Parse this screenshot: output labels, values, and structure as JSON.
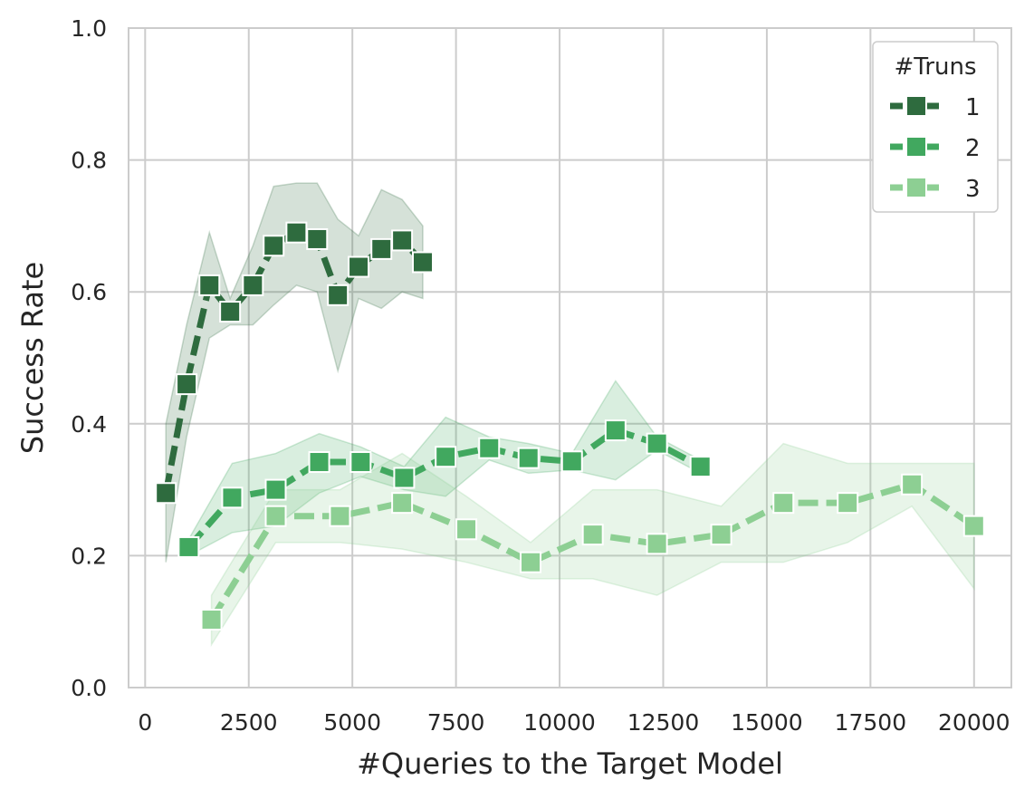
{
  "chart_data": {
    "type": "line",
    "title": "",
    "xlabel": "#Queries to the Target Model",
    "ylabel": "Success Rate",
    "xlim": [
      -400,
      20900
    ],
    "ylim": [
      0,
      1.0
    ],
    "xticks": [
      0,
      2500,
      5000,
      7500,
      10000,
      12500,
      15000,
      17500,
      20000
    ],
    "yticks": [
      0.0,
      0.2,
      0.4,
      0.6,
      0.8,
      1.0
    ],
    "xtick_labels": [
      "0",
      "2500",
      "5000",
      "7500",
      "10000",
      "12500",
      "15000",
      "17500",
      "20000"
    ],
    "ytick_labels": [
      "0.0",
      "0.2",
      "0.4",
      "0.6",
      "0.8",
      "1.0"
    ],
    "grid": true,
    "legend": {
      "title": "#Truns",
      "position": "top-right"
    },
    "series": [
      {
        "name": "1",
        "color": "#2e6b3e",
        "points": [
          {
            "x": 500,
            "y": 0.295,
            "lo": 0.19,
            "hi": 0.4
          },
          {
            "x": 1000,
            "y": 0.46,
            "lo": 0.38,
            "hi": 0.55
          },
          {
            "x": 1550,
            "y": 0.61,
            "lo": 0.53,
            "hi": 0.69
          },
          {
            "x": 2050,
            "y": 0.57,
            "lo": 0.55,
            "hi": 0.59
          },
          {
            "x": 2600,
            "y": 0.61,
            "lo": 0.55,
            "hi": 0.67
          },
          {
            "x": 3100,
            "y": 0.67,
            "lo": 0.58,
            "hi": 0.76
          },
          {
            "x": 3650,
            "y": 0.69,
            "lo": 0.61,
            "hi": 0.765
          },
          {
            "x": 4150,
            "y": 0.68,
            "lo": 0.6,
            "hi": 0.765
          },
          {
            "x": 4650,
            "y": 0.595,
            "lo": 0.48,
            "hi": 0.71
          },
          {
            "x": 5150,
            "y": 0.638,
            "lo": 0.59,
            "hi": 0.685
          },
          {
            "x": 5700,
            "y": 0.665,
            "lo": 0.575,
            "hi": 0.755
          },
          {
            "x": 6200,
            "y": 0.678,
            "lo": 0.6,
            "hi": 0.74
          },
          {
            "x": 6700,
            "y": 0.645,
            "lo": 0.59,
            "hi": 0.7
          }
        ]
      },
      {
        "name": "2",
        "color": "#41a85f",
        "points": [
          {
            "x": 1050,
            "y": 0.213,
            "lo": 0.2,
            "hi": 0.225
          },
          {
            "x": 2100,
            "y": 0.288,
            "lo": 0.235,
            "hi": 0.34
          },
          {
            "x": 3150,
            "y": 0.3,
            "lo": 0.245,
            "hi": 0.355
          },
          {
            "x": 4200,
            "y": 0.342,
            "lo": 0.295,
            "hi": 0.385
          },
          {
            "x": 5200,
            "y": 0.342,
            "lo": 0.32,
            "hi": 0.365
          },
          {
            "x": 6250,
            "y": 0.318,
            "lo": 0.3,
            "hi": 0.335
          },
          {
            "x": 7250,
            "y": 0.35,
            "lo": 0.29,
            "hi": 0.41
          },
          {
            "x": 8300,
            "y": 0.363,
            "lo": 0.345,
            "hi": 0.38
          },
          {
            "x": 9250,
            "y": 0.348,
            "lo": 0.325,
            "hi": 0.37
          },
          {
            "x": 10300,
            "y": 0.343,
            "lo": 0.33,
            "hi": 0.355
          },
          {
            "x": 11350,
            "y": 0.39,
            "lo": 0.315,
            "hi": 0.465
          },
          {
            "x": 12350,
            "y": 0.37,
            "lo": 0.36,
            "hi": 0.38
          },
          {
            "x": 13400,
            "y": 0.335,
            "lo": 0.325,
            "hi": 0.345
          }
        ]
      },
      {
        "name": "3",
        "color": "#8dcf93",
        "points": [
          {
            "x": 1600,
            "y": 0.103,
            "lo": 0.065,
            "hi": 0.14
          },
          {
            "x": 3150,
            "y": 0.26,
            "lo": 0.22,
            "hi": 0.3
          },
          {
            "x": 4700,
            "y": 0.26,
            "lo": 0.22,
            "hi": 0.3
          },
          {
            "x": 6200,
            "y": 0.28,
            "lo": 0.21,
            "hi": 0.355
          },
          {
            "x": 7750,
            "y": 0.24,
            "lo": 0.19,
            "hi": 0.29
          },
          {
            "x": 9300,
            "y": 0.19,
            "lo": 0.165,
            "hi": 0.22
          },
          {
            "x": 10800,
            "y": 0.232,
            "lo": 0.165,
            "hi": 0.3
          },
          {
            "x": 12350,
            "y": 0.218,
            "lo": 0.14,
            "hi": 0.3
          },
          {
            "x": 13900,
            "y": 0.232,
            "lo": 0.19,
            "hi": 0.275
          },
          {
            "x": 15400,
            "y": 0.28,
            "lo": 0.19,
            "hi": 0.37
          },
          {
            "x": 16950,
            "y": 0.28,
            "lo": 0.22,
            "hi": 0.34
          },
          {
            "x": 18500,
            "y": 0.308,
            "lo": 0.275,
            "hi": 0.34
          },
          {
            "x": 20000,
            "y": 0.245,
            "lo": 0.15,
            "hi": 0.34
          }
        ]
      }
    ]
  }
}
